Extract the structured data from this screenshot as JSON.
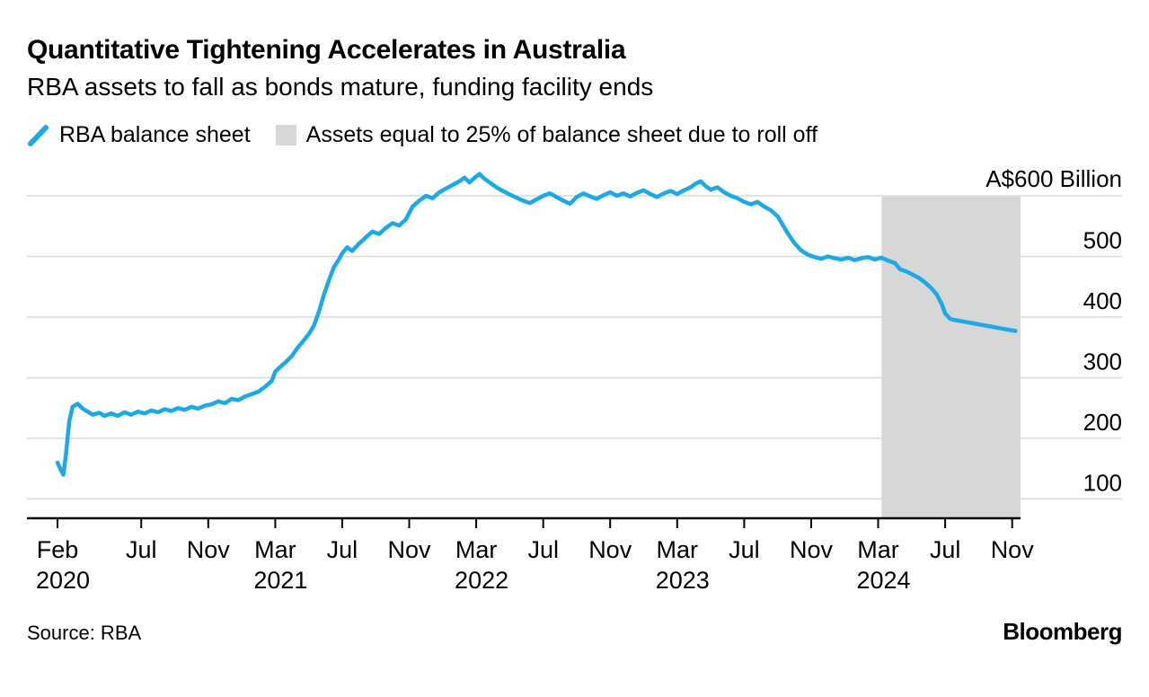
{
  "header": {
    "title": "Quantitative Tightening Accelerates in Australia",
    "subtitle": "RBA assets to fall as bonds mature, funding facility ends"
  },
  "legend": {
    "items": [
      {
        "label": "RBA balance sheet"
      },
      {
        "label": "Assets equal to 25% of balance sheet due to roll off"
      }
    ]
  },
  "footer": {
    "source": "Source: RBA",
    "brand": "Bloomberg"
  },
  "chart_data": {
    "type": "line",
    "title": "Quantitative Tightening Accelerates in Australia",
    "subtitle": "RBA assets to fall as bonds mature, funding facility ends",
    "ylabel": "A$ Billion",
    "x_start": "Feb 2020",
    "x_end": "Nov 2024",
    "x_domain_months": [
      0,
      57.5
    ],
    "grid": true,
    "legend_position": "top",
    "y_axis": {
      "gridline_values": [
        100,
        200,
        300,
        400,
        500,
        600
      ],
      "tick_labels": [
        "100",
        "200",
        "300",
        "400",
        "500"
      ],
      "top_label": "A$600 Billion",
      "ylim": [
        68,
        650
      ]
    },
    "x_axis": {
      "ticks": [
        {
          "m": 0,
          "label": "Feb",
          "year": "2020"
        },
        {
          "m": 5,
          "label": "Jul"
        },
        {
          "m": 9,
          "label": "Nov"
        },
        {
          "m": 13,
          "label": "Mar",
          "year": "2021"
        },
        {
          "m": 17,
          "label": "Jul"
        },
        {
          "m": 21,
          "label": "Nov"
        },
        {
          "m": 25,
          "label": "Mar",
          "year": "2022"
        },
        {
          "m": 29,
          "label": "Jul"
        },
        {
          "m": 33,
          "label": "Nov"
        },
        {
          "m": 37,
          "label": "Mar",
          "year": "2023"
        },
        {
          "m": 41,
          "label": "Jul"
        },
        {
          "m": 45,
          "label": "Nov"
        },
        {
          "m": 49,
          "label": "Mar",
          "year": "2024"
        },
        {
          "m": 53,
          "label": "Jul"
        },
        {
          "m": 57,
          "label": "Nov"
        }
      ]
    },
    "band": {
      "label": "Assets equal to 25% of balance sheet due to roll off",
      "color": "#d7d7d7",
      "start_month": 49.2,
      "end_month": 57.5,
      "start": "Mar 2024",
      "end": "Nov 2024"
    },
    "series": [
      {
        "name": "RBA balance sheet",
        "color": "#1ba9ea",
        "unit": "A$ billion",
        "points_month_value": [
          [
            0,
            160
          ],
          [
            0.2,
            148
          ],
          [
            0.35,
            140
          ],
          [
            0.5,
            172
          ],
          [
            0.7,
            228
          ],
          [
            0.9,
            252
          ],
          [
            1.2,
            257
          ],
          [
            1.5,
            249
          ],
          [
            1.8,
            244
          ],
          [
            2.1,
            239
          ],
          [
            2.5,
            242
          ],
          [
            2.8,
            237
          ],
          [
            3.2,
            241
          ],
          [
            3.6,
            237
          ],
          [
            4,
            243
          ],
          [
            4.4,
            239
          ],
          [
            4.8,
            244
          ],
          [
            5.2,
            241
          ],
          [
            5.6,
            246
          ],
          [
            6,
            243
          ],
          [
            6.4,
            248
          ],
          [
            6.8,
            245
          ],
          [
            7.2,
            250
          ],
          [
            7.6,
            247
          ],
          [
            8,
            252
          ],
          [
            8.4,
            249
          ],
          [
            8.8,
            254
          ],
          [
            9.2,
            256
          ],
          [
            9.6,
            261
          ],
          [
            10,
            258
          ],
          [
            10.4,
            265
          ],
          [
            10.8,
            263
          ],
          [
            11.2,
            269
          ],
          [
            11.6,
            273
          ],
          [
            12,
            277
          ],
          [
            12.4,
            285
          ],
          [
            12.8,
            295
          ],
          [
            13,
            310
          ],
          [
            13.3,
            318
          ],
          [
            13.6,
            325
          ],
          [
            14,
            336
          ],
          [
            14.3,
            348
          ],
          [
            14.6,
            358
          ],
          [
            15,
            372
          ],
          [
            15.3,
            385
          ],
          [
            15.6,
            408
          ],
          [
            15.9,
            436
          ],
          [
            16.2,
            460
          ],
          [
            16.5,
            482
          ],
          [
            16.8,
            495
          ],
          [
            17,
            505
          ],
          [
            17.3,
            515
          ],
          [
            17.6,
            509
          ],
          [
            18,
            521
          ],
          [
            18.4,
            531
          ],
          [
            18.8,
            541
          ],
          [
            19.2,
            537
          ],
          [
            19.6,
            547
          ],
          [
            20,
            555
          ],
          [
            20.4,
            551
          ],
          [
            20.8,
            561
          ],
          [
            21.2,
            582
          ],
          [
            21.6,
            592
          ],
          [
            22,
            600
          ],
          [
            22.4,
            596
          ],
          [
            22.8,
            606
          ],
          [
            23.2,
            612
          ],
          [
            23.6,
            618
          ],
          [
            24,
            624
          ],
          [
            24.3,
            630
          ],
          [
            24.6,
            622
          ],
          [
            25,
            632
          ],
          [
            25.2,
            636
          ],
          [
            25.5,
            628
          ],
          [
            25.8,
            622
          ],
          [
            26.2,
            614
          ],
          [
            26.6,
            608
          ],
          [
            27,
            602
          ],
          [
            27.4,
            597
          ],
          [
            27.8,
            592
          ],
          [
            28.2,
            588
          ],
          [
            28.6,
            594
          ],
          [
            29,
            600
          ],
          [
            29.4,
            604
          ],
          [
            29.8,
            598
          ],
          [
            30.2,
            592
          ],
          [
            30.6,
            587
          ],
          [
            31,
            598
          ],
          [
            31.4,
            604
          ],
          [
            31.8,
            599
          ],
          [
            32.2,
            595
          ],
          [
            32.6,
            601
          ],
          [
            33,
            606
          ],
          [
            33.4,
            600
          ],
          [
            33.8,
            604
          ],
          [
            34.2,
            599
          ],
          [
            34.6,
            605
          ],
          [
            35,
            609
          ],
          [
            35.4,
            603
          ],
          [
            35.8,
            598
          ],
          [
            36.2,
            604
          ],
          [
            36.6,
            608
          ],
          [
            37,
            603
          ],
          [
            37.4,
            609
          ],
          [
            37.8,
            614
          ],
          [
            38.1,
            620
          ],
          [
            38.4,
            624
          ],
          [
            38.7,
            616
          ],
          [
            39,
            610
          ],
          [
            39.4,
            614
          ],
          [
            39.8,
            606
          ],
          [
            40.2,
            600
          ],
          [
            40.6,
            596
          ],
          [
            41,
            590
          ],
          [
            41.4,
            586
          ],
          [
            41.8,
            590
          ],
          [
            42.2,
            582
          ],
          [
            42.6,
            576
          ],
          [
            43,
            566
          ],
          [
            43.3,
            552
          ],
          [
            43.6,
            538
          ],
          [
            44,
            522
          ],
          [
            44.4,
            510
          ],
          [
            44.8,
            503
          ],
          [
            45.2,
            499
          ],
          [
            45.6,
            496
          ],
          [
            46,
            500
          ],
          [
            46.4,
            497
          ],
          [
            46.8,
            495
          ],
          [
            47.2,
            498
          ],
          [
            47.6,
            494
          ],
          [
            48,
            497
          ],
          [
            48.4,
            499
          ],
          [
            48.8,
            495
          ],
          [
            49.2,
            498
          ],
          [
            49.6,
            493
          ],
          [
            50,
            489
          ],
          [
            50.3,
            479
          ],
          [
            50.7,
            475
          ],
          [
            51,
            471
          ],
          [
            51.4,
            465
          ],
          [
            51.8,
            457
          ],
          [
            52.2,
            447
          ],
          [
            52.5,
            437
          ],
          [
            52.8,
            421
          ],
          [
            53,
            406
          ],
          [
            53.3,
            397
          ],
          [
            53.6,
            395
          ],
          [
            54,
            393
          ],
          [
            54.4,
            391
          ],
          [
            54.8,
            389
          ],
          [
            55.2,
            387
          ],
          [
            55.6,
            385
          ],
          [
            56,
            383
          ],
          [
            56.4,
            381
          ],
          [
            56.8,
            379
          ],
          [
            57.2,
            377
          ]
        ]
      }
    ]
  }
}
